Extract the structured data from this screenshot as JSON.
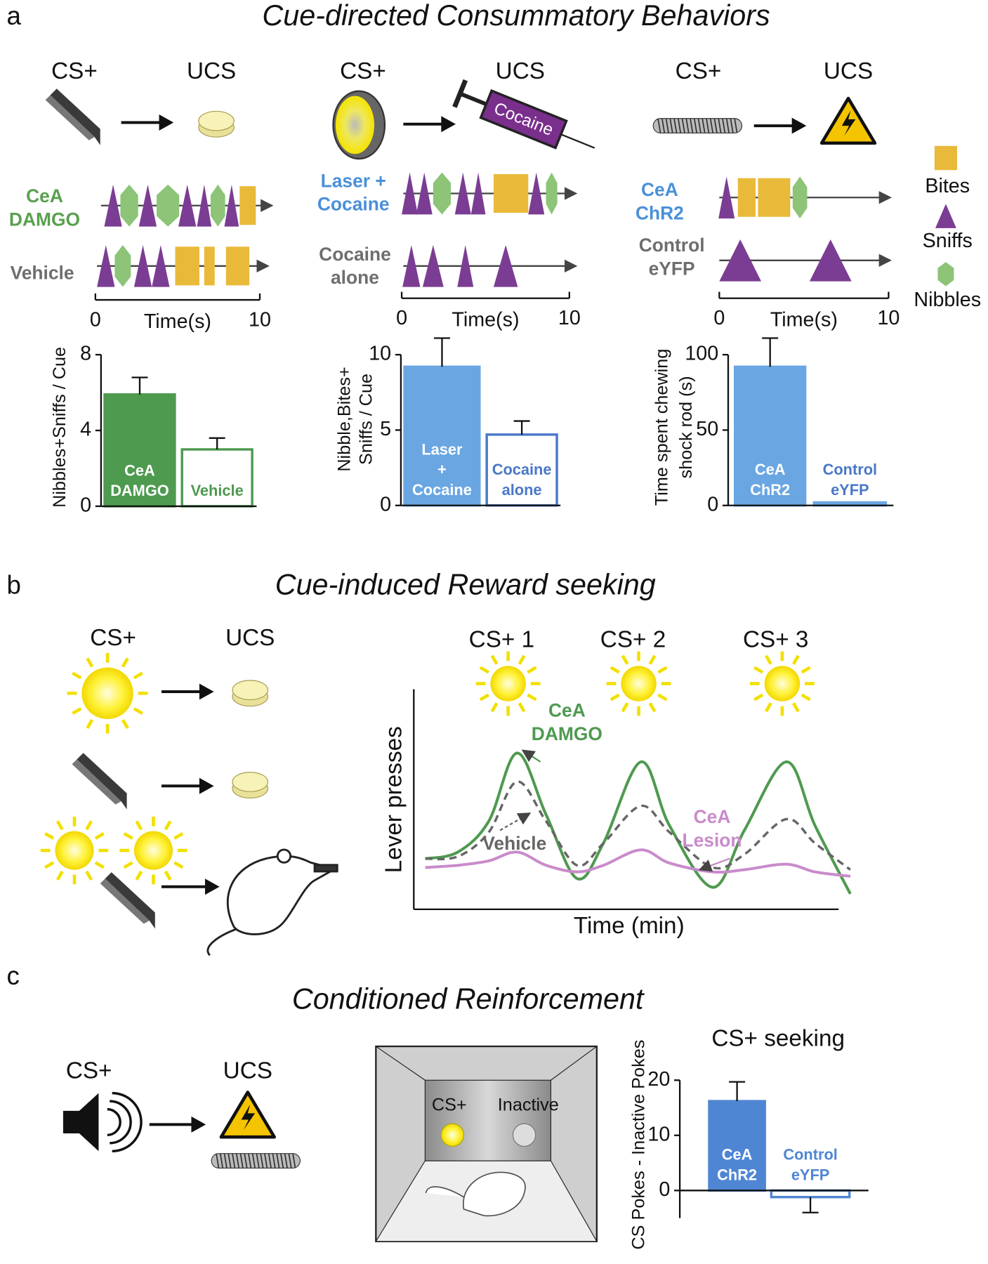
{
  "panel_a": {
    "label": "a",
    "title": "Cue-directed Consummatory Behaviors",
    "legend": [
      "Bites",
      "Sniffs",
      "Nibbles"
    ],
    "legend_colors": [
      "#e9b93a",
      "#7b3d93",
      "#8dc477"
    ],
    "experiments": [
      {
        "cs": "CS+",
        "ucs": "UCS",
        "rows": [
          [
            "CeA",
            "DAMGO"
          ],
          [
            "Vehicle"
          ]
        ],
        "row_colors": [
          "#5aa04f",
          "#6d6e70"
        ],
        "time_label": "Time(s)",
        "time_ticks": [
          0,
          10
        ]
      },
      {
        "cs": "CS+",
        "ucs": "UCS",
        "ucs_item": "Cocaine",
        "rows": [
          [
            "Laser +",
            "Cocaine"
          ],
          [
            "Cocaine",
            "alone"
          ]
        ],
        "row_colors": [
          "#4a90d9",
          "#6d6e70"
        ],
        "time_label": "Time(s)",
        "time_ticks": [
          0,
          10
        ]
      },
      {
        "cs": "CS+",
        "ucs": "UCS",
        "rows": [
          [
            "CeA",
            "ChR2"
          ],
          [
            "Control",
            "eYFP"
          ]
        ],
        "row_colors": [
          "#4a90d9",
          "#6d6e70"
        ],
        "time_label": "Time(s)",
        "time_ticks": [
          0,
          10
        ]
      }
    ]
  },
  "panel_b": {
    "label": "b",
    "title": "Cue-induced Reward seeking",
    "cs": "CS+",
    "ucs": "UCS"
  },
  "panel_c": {
    "label": "c",
    "title": "Conditioned Reinforcement",
    "cs": "CS+",
    "ucs": "UCS",
    "chamber": [
      "CS+",
      "Inactive"
    ]
  },
  "chart_data": [
    {
      "type": "bar",
      "ylabel": [
        "Nibbles+Sniffs / Cue"
      ],
      "categories": [
        [
          "CeA",
          "DAMGO"
        ],
        [
          "Vehicle"
        ]
      ],
      "values": [
        5.9,
        3.0
      ],
      "errors": [
        0.9,
        0.6
      ],
      "fills": [
        "#4e9a4f",
        "#ffffff"
      ],
      "strokes": [
        "#4e9a4f",
        "#4e9a4f"
      ],
      "label_colors": [
        "#ffffff",
        "#4e9a4f"
      ],
      "ylim": [
        0,
        8
      ],
      "yticks": [
        0,
        4,
        8
      ]
    },
    {
      "type": "bar",
      "ylabel": [
        "Nibble,Bites+",
        "Sniffs / Cue"
      ],
      "categories": [
        [
          "Laser",
          "+",
          "Cocaine"
        ],
        [
          "Cocaine",
          "alone"
        ]
      ],
      "values": [
        9.2,
        4.7
      ],
      "errors": [
        1.9,
        0.9
      ],
      "fills": [
        "#6aa6e2",
        "#ffffff"
      ],
      "strokes": [
        "#6aa6e2",
        "#4a78c8"
      ],
      "label_colors": [
        "#ffffff",
        "#4a78c8"
      ],
      "ylim": [
        0,
        10
      ],
      "yticks": [
        0,
        5,
        10
      ]
    },
    {
      "type": "bar",
      "ylabel": [
        "Time spent chewing",
        "shock rod (s)"
      ],
      "categories": [
        [
          "CeA",
          "ChR2"
        ],
        [
          "Control",
          "eYFP"
        ]
      ],
      "values": [
        92,
        2
      ],
      "errors": [
        19,
        null
      ],
      "fills": [
        "#6aa6e2",
        "#6aa6e2"
      ],
      "strokes": [
        "#6aa6e2",
        "#6aa6e2"
      ],
      "label_colors": [
        "#ffffff",
        "#4a78c8"
      ],
      "ylim": [
        0,
        100
      ],
      "yticks": [
        0,
        50,
        100
      ]
    },
    {
      "type": "line",
      "ylabel": "Lever presses",
      "xlabel": "Time (min)",
      "cue_labels": [
        "CS+ 1",
        "CS+ 2",
        "CS+ 3"
      ],
      "x": [
        2.6,
        10,
        17,
        23.4,
        30,
        37,
        43,
        51.5,
        58,
        67.8,
        75,
        84.5,
        91,
        99
      ],
      "xlim": [
        0,
        100
      ],
      "ylim": [
        0,
        100
      ],
      "series": [
        {
          "name": [
            "CeA",
            "DAMGO"
          ],
          "color": "#4e9a4f",
          "dash": false,
          "values": [
            23,
            26,
            40,
            71,
            43,
            14,
            30,
            67,
            38,
            10,
            36,
            67,
            38,
            7
          ]
        },
        {
          "name": [
            "Vehicle"
          ],
          "color": "#666666",
          "dash": true,
          "values": [
            23,
            24,
            35,
            58,
            40,
            20,
            30,
            47,
            35,
            19,
            25,
            41,
            30,
            18
          ]
        },
        {
          "name": [
            "CeA",
            "Lesion"
          ],
          "color": "#c98bcb",
          "dash": false,
          "values": [
            19,
            20,
            22,
            26,
            20,
            17,
            20,
            27,
            21,
            17,
            18,
            20.5,
            17,
            15
          ]
        }
      ]
    },
    {
      "type": "bar",
      "title": "CS+ seeking",
      "ylabel": [
        "CS Pokes - Inactive Pokes"
      ],
      "categories": [
        [
          "CeA",
          "ChR2"
        ],
        [
          "Control",
          "eYFP"
        ]
      ],
      "values": [
        16.2,
        -1.2
      ],
      "errors": [
        3.5,
        2.8
      ],
      "fills": [
        "#4f86d3",
        "#ffffff"
      ],
      "strokes": [
        "#4f86d3",
        "#4f86d3"
      ],
      "label_colors": [
        "#ffffff",
        "#4f86d3"
      ],
      "ylim": [
        -5,
        20
      ],
      "yticks": [
        0,
        10,
        20
      ]
    }
  ]
}
